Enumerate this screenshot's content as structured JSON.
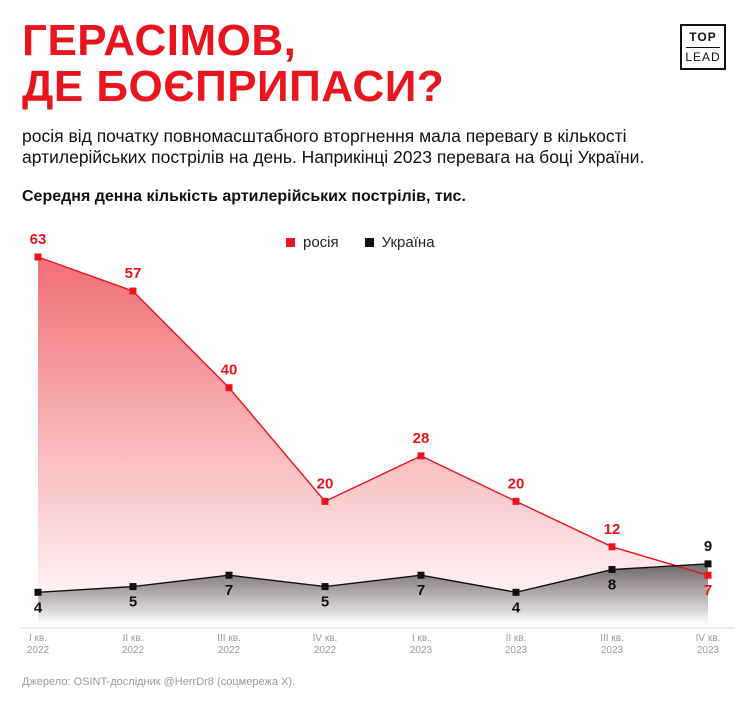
{
  "header": {
    "title_lines": [
      "ГЕРАСІМОВ,",
      "ДЕ БОЄПРИПАСИ?"
    ],
    "logo_top": "TOP",
    "logo_bottom": "LEAD"
  },
  "subtitle_lines": [
    "росія від початку повномасштабного вторгнення мала перевагу в кількості",
    "артилерійських пострілів на день. Наприкінці 2023 перевага на боці України."
  ],
  "source": "Джерело: OSINT-дослідник @HerrDr8 (соцмережа Х).",
  "colors": {
    "russia": "#e8141e",
    "ukraine": "#111111",
    "title": "#e8141e"
  },
  "chart_data": {
    "type": "area",
    "title": "Середня денна кількість артилерійських пострілів, тис.",
    "categories": [
      [
        "I кв.",
        "2022"
      ],
      [
        "II кв.",
        "2022"
      ],
      [
        "III кв.",
        "2022"
      ],
      [
        "IV кв.",
        "2022"
      ],
      [
        "I кв.",
        "2023"
      ],
      [
        "II кв.",
        "2023"
      ],
      [
        "III кв.",
        "2023"
      ],
      [
        "IV кв.",
        "2023"
      ]
    ],
    "series": [
      {
        "name": "росія",
        "values": [
          63,
          57,
          40,
          20,
          28,
          20,
          12,
          7
        ]
      },
      {
        "name": "Україна",
        "values": [
          4,
          5,
          7,
          5,
          7,
          4,
          8,
          9
        ]
      }
    ],
    "ylim": [
      0,
      63
    ],
    "grid": false,
    "legend_position": "top-center"
  }
}
